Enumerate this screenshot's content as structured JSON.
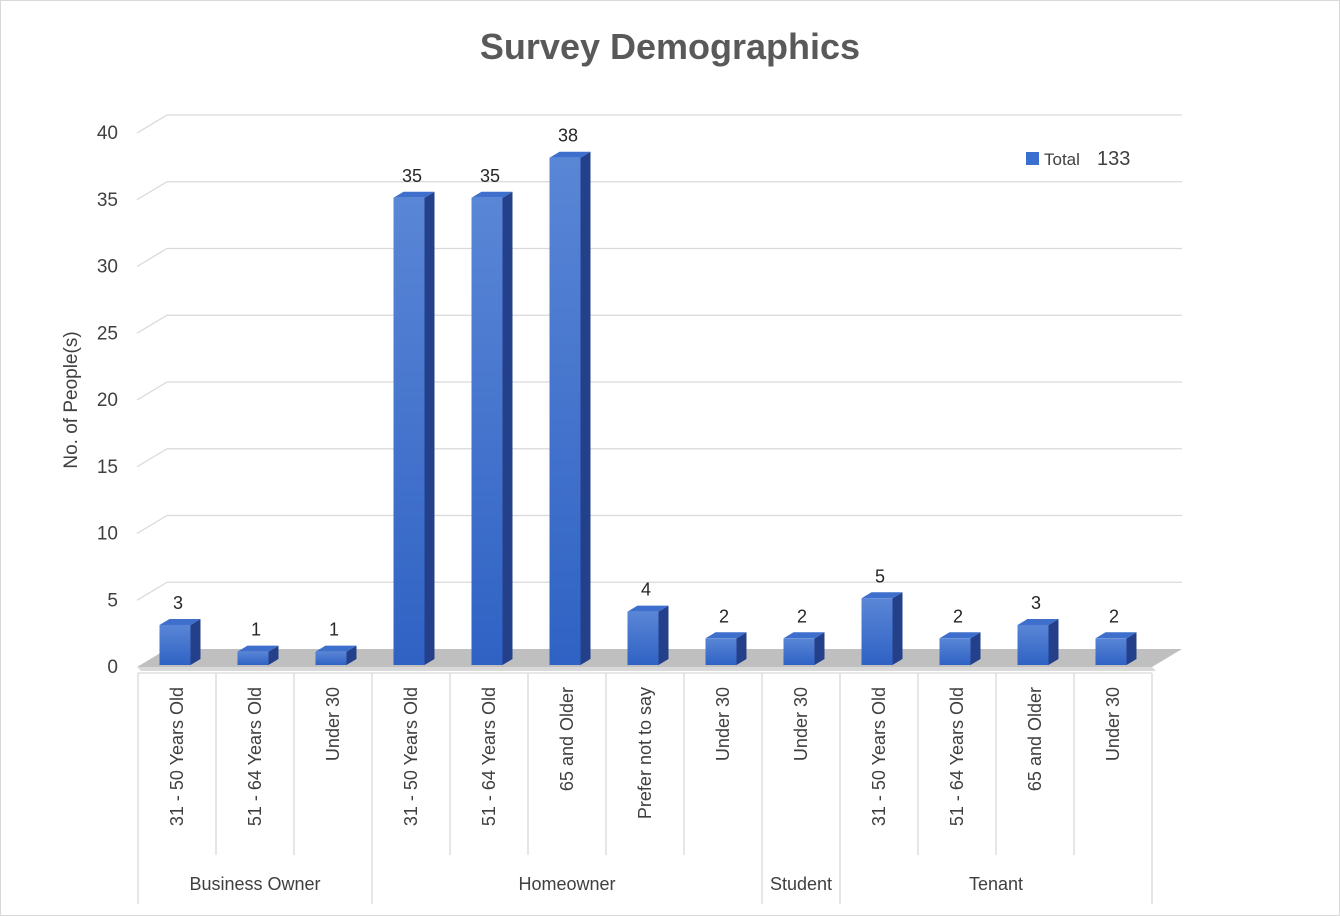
{
  "chart_data": {
    "type": "bar",
    "title": "Survey Demographics",
    "xlabel": "",
    "ylabel": "No. of People(s)",
    "ylim": [
      0,
      40
    ],
    "yticks": [
      0,
      5,
      10,
      15,
      20,
      25,
      30,
      35,
      40
    ],
    "grid": true,
    "legend_position": "top-right",
    "legend": {
      "label": "Total",
      "total": "133"
    },
    "bar_color": "#3a6fd0",
    "groups": [
      {
        "name": "Business Owner",
        "categories": [
          "31 - 50 Years Old",
          "51 - 64 Years Old",
          "Under 30"
        ],
        "values": [
          3,
          1,
          1
        ]
      },
      {
        "name": "Homeowner",
        "categories": [
          "31 - 50 Years Old",
          "51 - 64 Years Old",
          "65 and Older",
          "Prefer not to say",
          "Under 30"
        ],
        "values": [
          35,
          35,
          38,
          4,
          2
        ]
      },
      {
        "name": "Student",
        "categories": [
          "Under 30"
        ],
        "values": [
          2
        ]
      },
      {
        "name": "Tenant",
        "categories": [
          "31 - 50 Years Old",
          "51 - 64 Years Old",
          "65 and Older",
          "Under 30"
        ],
        "values": [
          5,
          2,
          3,
          2
        ]
      }
    ]
  }
}
